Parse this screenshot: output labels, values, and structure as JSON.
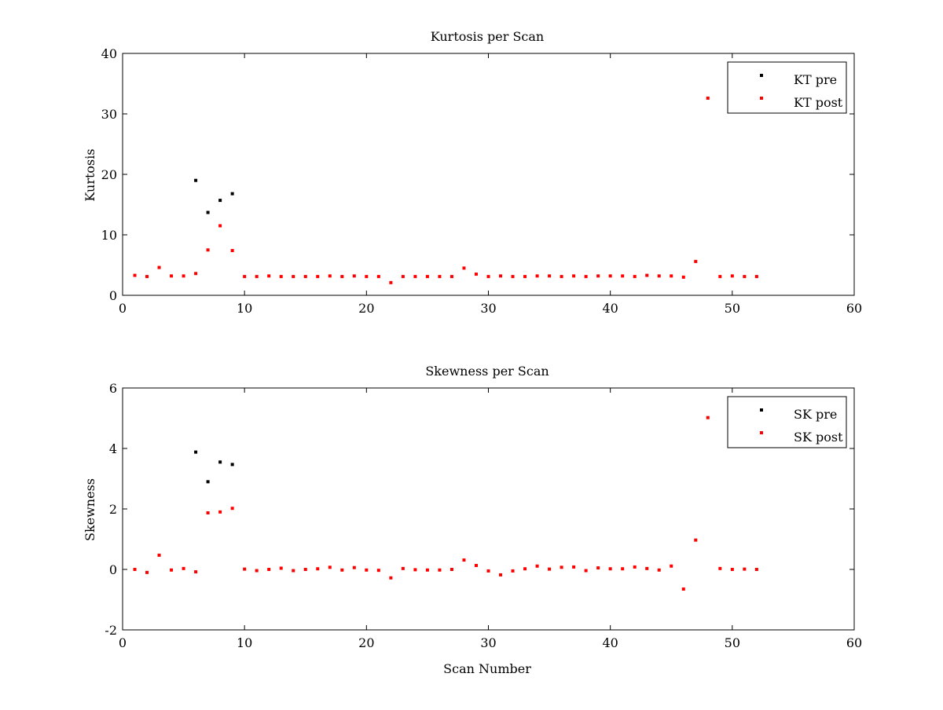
{
  "chart_data": [
    {
      "type": "scatter",
      "title": "Kurtosis per Scan",
      "xlabel": "",
      "ylabel": "Kurtosis",
      "xlim": [
        0,
        60
      ],
      "ylim": [
        0,
        40
      ],
      "xticks": [
        0,
        10,
        20,
        30,
        40,
        50,
        60
      ],
      "yticks": [
        0,
        10,
        20,
        30,
        40
      ],
      "legend": {
        "position": "top-right"
      },
      "series": [
        {
          "name": "KT pre",
          "color": "#000000",
          "points": [
            [
              6,
              19.0
            ],
            [
              7,
              13.7
            ],
            [
              8,
              15.7
            ],
            [
              9,
              16.8
            ]
          ]
        },
        {
          "name": "KT post",
          "color": "#ff0000",
          "points": [
            [
              1,
              3.3
            ],
            [
              2,
              3.1
            ],
            [
              3,
              4.6
            ],
            [
              4,
              3.2
            ],
            [
              5,
              3.2
            ],
            [
              6,
              3.6
            ],
            [
              7,
              7.5
            ],
            [
              8,
              11.5
            ],
            [
              9,
              7.4
            ],
            [
              10,
              3.1
            ],
            [
              11,
              3.1
            ],
            [
              12,
              3.2
            ],
            [
              13,
              3.1
            ],
            [
              14,
              3.1
            ],
            [
              15,
              3.1
            ],
            [
              16,
              3.1
            ],
            [
              17,
              3.2
            ],
            [
              18,
              3.1
            ],
            [
              19,
              3.2
            ],
            [
              20,
              3.1
            ],
            [
              21,
              3.1
            ],
            [
              22,
              2.1
            ],
            [
              23,
              3.1
            ],
            [
              24,
              3.1
            ],
            [
              25,
              3.1
            ],
            [
              26,
              3.1
            ],
            [
              27,
              3.1
            ],
            [
              28,
              4.5
            ],
            [
              29,
              3.5
            ],
            [
              30,
              3.1
            ],
            [
              31,
              3.2
            ],
            [
              32,
              3.1
            ],
            [
              33,
              3.1
            ],
            [
              34,
              3.2
            ],
            [
              35,
              3.2
            ],
            [
              36,
              3.1
            ],
            [
              37,
              3.2
            ],
            [
              38,
              3.1
            ],
            [
              39,
              3.2
            ],
            [
              40,
              3.2
            ],
            [
              41,
              3.2
            ],
            [
              42,
              3.1
            ],
            [
              43,
              3.3
            ],
            [
              44,
              3.2
            ],
            [
              45,
              3.2
            ],
            [
              46,
              3.0
            ],
            [
              47,
              5.6
            ],
            [
              48,
              32.6
            ],
            [
              49,
              3.1
            ],
            [
              50,
              3.2
            ],
            [
              51,
              3.1
            ],
            [
              52,
              3.1
            ]
          ]
        }
      ]
    },
    {
      "type": "scatter",
      "title": "Skewness per Scan",
      "xlabel": "Scan Number",
      "ylabel": "Skewness",
      "xlim": [
        0,
        60
      ],
      "ylim": [
        -2,
        6
      ],
      "xticks": [
        0,
        10,
        20,
        30,
        40,
        50,
        60
      ],
      "yticks": [
        -2,
        0,
        2,
        4,
        6
      ],
      "legend": {
        "position": "top-right"
      },
      "series": [
        {
          "name": "SK pre",
          "color": "#000000",
          "points": [
            [
              6,
              3.88
            ],
            [
              7,
              2.9
            ],
            [
              8,
              3.55
            ],
            [
              9,
              3.47
            ]
          ]
        },
        {
          "name": "SK post",
          "color": "#ff0000",
          "points": [
            [
              1,
              0.0
            ],
            [
              2,
              -0.1
            ],
            [
              3,
              0.47
            ],
            [
              4,
              -0.02
            ],
            [
              5,
              0.03
            ],
            [
              6,
              -0.08
            ],
            [
              7,
              1.87
            ],
            [
              8,
              1.9
            ],
            [
              9,
              2.02
            ],
            [
              10,
              0.01
            ],
            [
              11,
              -0.04
            ],
            [
              12,
              0.0
            ],
            [
              13,
              0.04
            ],
            [
              14,
              -0.04
            ],
            [
              15,
              0.0
            ],
            [
              16,
              0.02
            ],
            [
              17,
              0.07
            ],
            [
              18,
              -0.02
            ],
            [
              19,
              0.06
            ],
            [
              20,
              -0.02
            ],
            [
              21,
              -0.03
            ],
            [
              22,
              -0.28
            ],
            [
              23,
              0.03
            ],
            [
              24,
              -0.01
            ],
            [
              25,
              -0.02
            ],
            [
              26,
              -0.02
            ],
            [
              27,
              0.0
            ],
            [
              28,
              0.31
            ],
            [
              29,
              0.13
            ],
            [
              30,
              -0.05
            ],
            [
              31,
              -0.18
            ],
            [
              32,
              -0.05
            ],
            [
              33,
              0.02
            ],
            [
              34,
              0.11
            ],
            [
              35,
              0.01
            ],
            [
              36,
              0.07
            ],
            [
              37,
              0.08
            ],
            [
              38,
              -0.04
            ],
            [
              39,
              0.05
            ],
            [
              40,
              0.02
            ],
            [
              41,
              0.02
            ],
            [
              42,
              0.08
            ],
            [
              43,
              0.03
            ],
            [
              44,
              -0.02
            ],
            [
              45,
              0.11
            ],
            [
              46,
              -0.65
            ],
            [
              47,
              0.97
            ],
            [
              48,
              5.02
            ],
            [
              49,
              0.03
            ],
            [
              50,
              0.0
            ],
            [
              51,
              0.01
            ],
            [
              52,
              0.0
            ]
          ]
        }
      ]
    }
  ]
}
